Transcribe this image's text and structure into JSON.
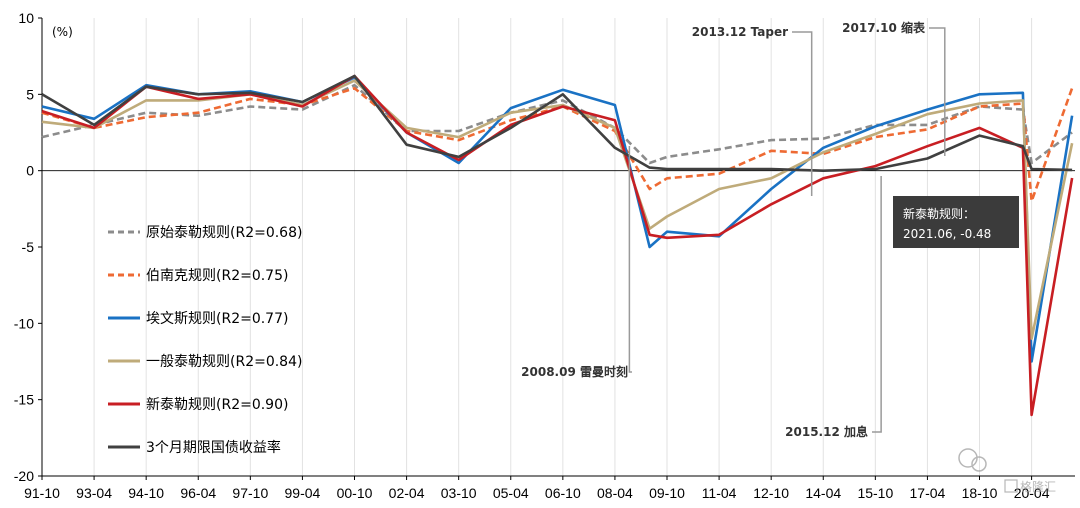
{
  "chart_data": {
    "type": "line",
    "ylabel": "(%)",
    "ylim": [
      -20,
      10
    ],
    "yticks": [
      10,
      5,
      0,
      -5,
      -10,
      -15,
      -20
    ],
    "xticks": [
      "91-10",
      "93-04",
      "94-10",
      "96-04",
      "97-10",
      "99-04",
      "00-10",
      "02-04",
      "03-10",
      "05-04",
      "06-10",
      "08-04",
      "09-10",
      "11-04",
      "12-10",
      "14-04",
      "15-10",
      "17-04",
      "18-10",
      "20-04"
    ],
    "grid": "vertical",
    "legend_position": "left-middle",
    "series": [
      {
        "name": "原始泰勒规则(R2=0.68)",
        "color": "#8c8c8c",
        "dash": "dashed",
        "points": [
          [
            "1991-10",
            2.2
          ],
          [
            "1993-04",
            3.0
          ],
          [
            "1994-10",
            3.8
          ],
          [
            "1996-04",
            3.6
          ],
          [
            "1997-10",
            4.2
          ],
          [
            "1999-04",
            4.0
          ],
          [
            "2000-10",
            5.6
          ],
          [
            "2002-04",
            2.6
          ],
          [
            "2003-10",
            2.6
          ],
          [
            "2005-04",
            3.8
          ],
          [
            "2006-10",
            4.6
          ],
          [
            "2008-04",
            2.8
          ],
          [
            "2009-04",
            0.5
          ],
          [
            "2009-10",
            0.9
          ],
          [
            "2011-04",
            1.4
          ],
          [
            "2012-10",
            2.0
          ],
          [
            "2014-04",
            2.1
          ],
          [
            "2015-10",
            3.0
          ],
          [
            "2017-04",
            3.0
          ],
          [
            "2018-10",
            4.2
          ],
          [
            "2020-01",
            4.0
          ],
          [
            "2020-04",
            0.5
          ],
          [
            "2021-06",
            2.5
          ]
        ]
      },
      {
        "name": "伯南克规则(R2=0.75)",
        "color": "#ee6a33",
        "dash": "dashed",
        "points": [
          [
            "1991-10",
            3.8
          ],
          [
            "1993-04",
            2.8
          ],
          [
            "1994-10",
            3.5
          ],
          [
            "1996-04",
            3.8
          ],
          [
            "1997-10",
            4.7
          ],
          [
            "1999-04",
            4.3
          ],
          [
            "2000-10",
            5.4
          ],
          [
            "2002-04",
            2.6
          ],
          [
            "2003-10",
            2.0
          ],
          [
            "2005-04",
            3.3
          ],
          [
            "2006-10",
            4.2
          ],
          [
            "2008-04",
            2.6
          ],
          [
            "2009-04",
            -1.2
          ],
          [
            "2009-10",
            -0.5
          ],
          [
            "2011-04",
            -0.2
          ],
          [
            "2012-10",
            1.3
          ],
          [
            "2014-04",
            1.1
          ],
          [
            "2015-10",
            2.2
          ],
          [
            "2017-04",
            2.7
          ],
          [
            "2018-10",
            4.2
          ],
          [
            "2020-01",
            4.4
          ],
          [
            "2020-04",
            -2.0
          ],
          [
            "2021-06",
            5.4
          ]
        ]
      },
      {
        "name": "埃文斯规则(R2=0.77)",
        "color": "#1a72c4",
        "dash": "solid",
        "points": [
          [
            "1991-10",
            4.2
          ],
          [
            "1993-04",
            3.4
          ],
          [
            "1994-10",
            5.6
          ],
          [
            "1996-04",
            5.0
          ],
          [
            "1997-10",
            5.2
          ],
          [
            "1999-04",
            4.5
          ],
          [
            "2000-10",
            6.1
          ],
          [
            "2002-04",
            2.5
          ],
          [
            "2003-10",
            0.5
          ],
          [
            "2005-04",
            4.1
          ],
          [
            "2006-10",
            5.3
          ],
          [
            "2008-04",
            4.3
          ],
          [
            "2009-04",
            -5.0
          ],
          [
            "2009-10",
            -4.0
          ],
          [
            "2011-04",
            -4.3
          ],
          [
            "2012-10",
            -1.2
          ],
          [
            "2014-04",
            1.5
          ],
          [
            "2015-10",
            2.9
          ],
          [
            "2017-04",
            4.0
          ],
          [
            "2018-10",
            5.0
          ],
          [
            "2020-01",
            5.1
          ],
          [
            "2020-04",
            -12.5
          ],
          [
            "2021-06",
            3.6
          ]
        ]
      },
      {
        "name": "一般泰勒规则(R2=0.84)",
        "color": "#bfab7a",
        "dash": "solid",
        "points": [
          [
            "1991-10",
            3.2
          ],
          [
            "1993-04",
            2.8
          ],
          [
            "1994-10",
            4.6
          ],
          [
            "1996-04",
            4.6
          ],
          [
            "1997-10",
            5.0
          ],
          [
            "1999-04",
            4.3
          ],
          [
            "2000-10",
            5.9
          ],
          [
            "2002-04",
            2.8
          ],
          [
            "2003-10",
            2.2
          ],
          [
            "2005-04",
            3.8
          ],
          [
            "2006-10",
            4.3
          ],
          [
            "2008-04",
            2.8
          ],
          [
            "2009-04",
            -3.8
          ],
          [
            "2009-10",
            -3.0
          ],
          [
            "2011-04",
            -1.2
          ],
          [
            "2012-10",
            -0.5
          ],
          [
            "2014-04",
            1.2
          ],
          [
            "2015-10",
            2.4
          ],
          [
            "2017-04",
            3.7
          ],
          [
            "2018-10",
            4.4
          ],
          [
            "2020-01",
            4.6
          ],
          [
            "2020-04",
            -11.0
          ],
          [
            "2021-06",
            1.8
          ]
        ]
      },
      {
        "name": "新泰勒规则(R2=0.90)",
        "color": "#c81e23",
        "dash": "solid",
        "points": [
          [
            "1991-10",
            3.9
          ],
          [
            "1993-04",
            2.8
          ],
          [
            "1994-10",
            5.5
          ],
          [
            "1996-04",
            4.7
          ],
          [
            "1997-10",
            5.0
          ],
          [
            "1999-04",
            4.2
          ],
          [
            "2000-10",
            6.2
          ],
          [
            "2002-04",
            2.5
          ],
          [
            "2003-10",
            0.7
          ],
          [
            "2005-04",
            3.0
          ],
          [
            "2006-10",
            4.2
          ],
          [
            "2008-04",
            3.3
          ],
          [
            "2009-04",
            -4.2
          ],
          [
            "2009-10",
            -4.4
          ],
          [
            "2011-04",
            -4.2
          ],
          [
            "2012-10",
            -2.2
          ],
          [
            "2014-04",
            -0.5
          ],
          [
            "2015-10",
            0.3
          ],
          [
            "2017-04",
            1.6
          ],
          [
            "2018-10",
            2.8
          ],
          [
            "2020-01",
            1.5
          ],
          [
            "2020-04",
            -16.0
          ],
          [
            "2021-06",
            -0.48
          ]
        ]
      },
      {
        "name": "3个月期限国债收益率",
        "color": "#404040",
        "dash": "solid",
        "points": [
          [
            "1991-10",
            5.0
          ],
          [
            "1993-04",
            3.0
          ],
          [
            "1994-10",
            5.5
          ],
          [
            "1996-04",
            5.0
          ],
          [
            "1997-10",
            5.1
          ],
          [
            "1999-04",
            4.5
          ],
          [
            "2000-10",
            6.2
          ],
          [
            "2002-04",
            1.7
          ],
          [
            "2003-10",
            0.9
          ],
          [
            "2005-04",
            2.8
          ],
          [
            "2006-10",
            5.0
          ],
          [
            "2008-04",
            1.5
          ],
          [
            "2009-04",
            0.2
          ],
          [
            "2009-10",
            0.1
          ],
          [
            "2011-04",
            0.1
          ],
          [
            "2012-10",
            0.1
          ],
          [
            "2014-04",
            0.0
          ],
          [
            "2015-10",
            0.1
          ],
          [
            "2017-04",
            0.8
          ],
          [
            "2018-10",
            2.3
          ],
          [
            "2020-01",
            1.6
          ],
          [
            "2020-04",
            0.1
          ],
          [
            "2021-06",
            0.05
          ]
        ]
      }
    ],
    "annotations": [
      {
        "text": "2013.12 Taper",
        "x": "2013-12"
      },
      {
        "text": "2017.10 缩表",
        "x": "2017-10"
      },
      {
        "text": "2008.09 雷曼时刻",
        "x": "2008-09"
      },
      {
        "text": "2015.12 加息",
        "x": "2015-12"
      }
    ],
    "callout": {
      "line1": "新泰勒规则：",
      "line2": "2021.06, -0.48"
    },
    "watermark": "格隆汇"
  }
}
